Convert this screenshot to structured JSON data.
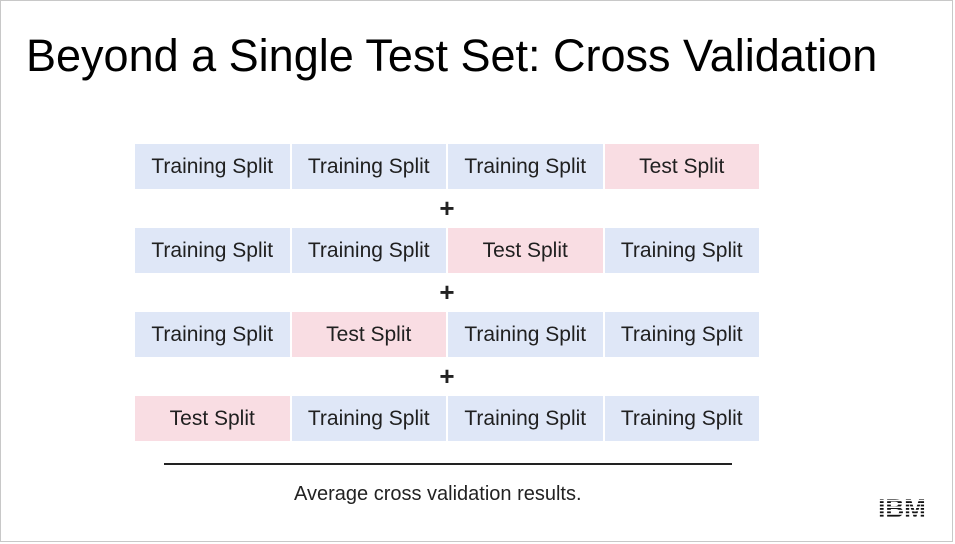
{
  "title": "Beyond a Single Test Set: Cross Validation",
  "rows": [
    [
      "Training Split",
      "Training Split",
      "Training Split",
      "Test Split"
    ],
    [
      "Training Split",
      "Training Split",
      "Test Split",
      "Training Split"
    ],
    [
      "Training Split",
      "Test Split",
      "Training Split",
      "Training Split"
    ],
    [
      "Test Split",
      "Training Split",
      "Training Split",
      "Training Split"
    ]
  ],
  "plus_symbol": "+",
  "caption": "Average cross validation results.",
  "logo_text": "IBM",
  "colors": {
    "training_split": "#dfe7f7",
    "test_split": "#f9dde3"
  }
}
